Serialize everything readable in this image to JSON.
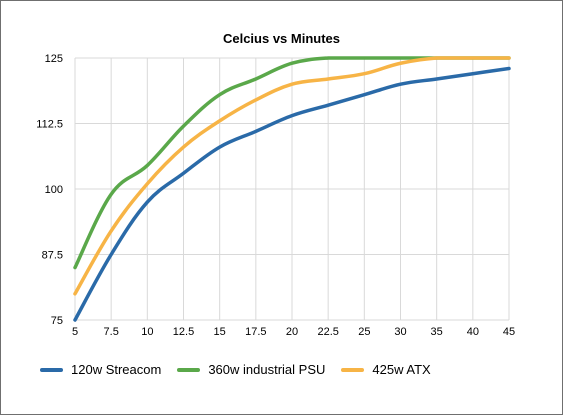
{
  "chart_data": {
    "type": "line",
    "title": "Celcius vs Minutes",
    "xlabel": "",
    "ylabel": "",
    "categories": [
      "5",
      "7.5",
      "10",
      "12.5",
      "15",
      "17.5",
      "20",
      "22.5",
      "25",
      "30",
      "35",
      "40",
      "45"
    ],
    "ylim": [
      75,
      125
    ],
    "yticks": [
      "75",
      "87.5",
      "100",
      "112.5",
      "125"
    ],
    "grid": true,
    "legend_position": "bottom",
    "series": [
      {
        "name": "120w Streacom",
        "color": "#2a6aa8",
        "values": [
          75,
          87.5,
          97.5,
          103,
          108,
          111,
          114,
          116,
          118,
          120,
          121,
          122,
          123
        ]
      },
      {
        "name": "360w industrial PSU",
        "color": "#5aa84a",
        "values": [
          85,
          99,
          104.5,
          112,
          118,
          121,
          124,
          125,
          125,
          125,
          125,
          125,
          125
        ]
      },
      {
        "name": "425w ATX",
        "color": "#f7b446",
        "values": [
          80,
          92,
          101,
          108,
          113,
          117,
          120,
          121,
          122,
          124,
          125,
          125,
          125
        ]
      }
    ]
  }
}
